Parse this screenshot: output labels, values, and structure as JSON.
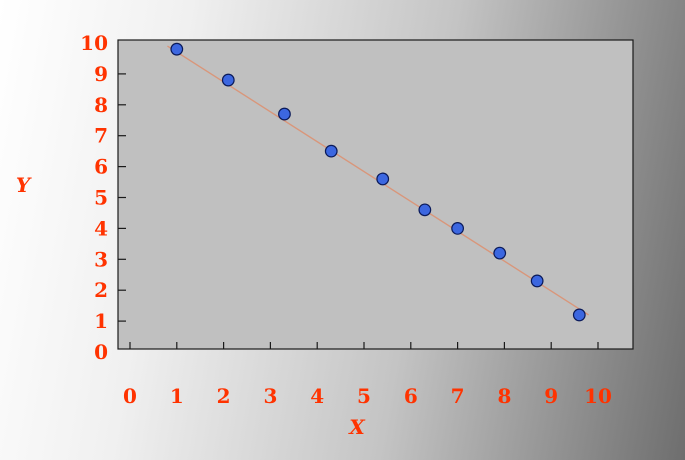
{
  "chart_data": {
    "type": "scatter",
    "title": "",
    "xlabel": "X",
    "ylabel": "Y",
    "xlim": [
      0,
      10
    ],
    "ylim": [
      0,
      10
    ],
    "x_ticks": [
      0,
      1,
      2,
      3,
      4,
      5,
      6,
      7,
      8,
      9,
      10
    ],
    "x_tick_values": [
      0,
      1,
      2,
      3,
      4,
      5,
      6,
      7,
      8,
      9,
      10
    ],
    "y_ticks": [
      0,
      1,
      2,
      3,
      4,
      5,
      6,
      7,
      8,
      9,
      10
    ],
    "grid": false,
    "legend": "none",
    "series": [
      {
        "x": [
          1.0,
          2.1,
          3.3,
          4.3,
          5.4,
          6.3,
          7.0,
          7.9,
          8.7,
          9.6
        ],
        "y": [
          9.8,
          8.8,
          7.7,
          6.5,
          5.6,
          4.6,
          4.0,
          3.2,
          2.3,
          1.2
        ]
      }
    ],
    "trend_line": {
      "x": [
        0.8,
        9.8
      ],
      "y": [
        9.9,
        1.2
      ]
    },
    "colors": {
      "marker_fill": "#3c67e0",
      "marker_stroke": "#0a1a5a",
      "trend_line": "#d9967a",
      "labels": "#ff3300",
      "plot_bg": "#c0c0c0",
      "frame": "#1a1a1a"
    }
  }
}
